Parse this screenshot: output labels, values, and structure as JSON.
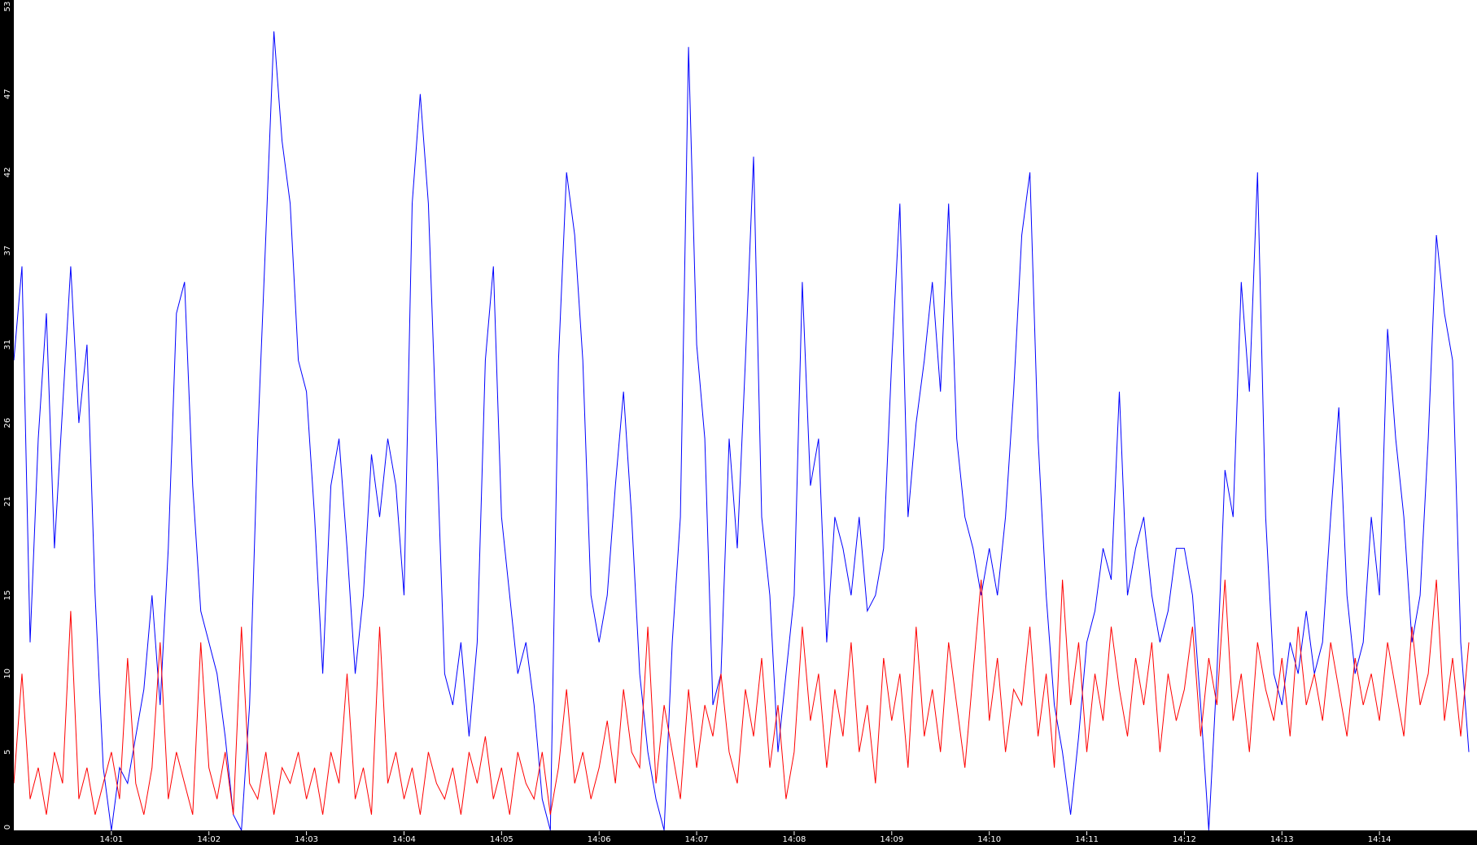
{
  "chart_data": {
    "type": "line",
    "title": "",
    "xlabel": "",
    "ylabel": "",
    "ylim": [
      0,
      53
    ],
    "xlim": [
      "14:00:00",
      "14:15:00"
    ],
    "sample_interval_seconds": 5,
    "grid": false,
    "legend": "none",
    "y_ticks": [
      "0",
      "5",
      "10",
      "15",
      "21",
      "26",
      "31",
      "37",
      "42",
      "47",
      "53"
    ],
    "x_ticks": [
      "14:01",
      "14:02",
      "14:03",
      "14:04",
      "14:05",
      "14:06",
      "14:07",
      "14:08",
      "14:09",
      "14:10",
      "14:11",
      "14:12",
      "14:13",
      "14:14"
    ],
    "series": [
      {
        "color": "#0000ff",
        "values": [
          30,
          36,
          12,
          25,
          33,
          18,
          27,
          36,
          26,
          31,
          15,
          4,
          0,
          4,
          3,
          6,
          9,
          15,
          8,
          18,
          33,
          35,
          22,
          14,
          12,
          10,
          6,
          1,
          0,
          8,
          25,
          38,
          51,
          44,
          40,
          30,
          28,
          20,
          10,
          22,
          25,
          18,
          10,
          15,
          24,
          20,
          25,
          22,
          15,
          40,
          47,
          40,
          25,
          10,
          8,
          12,
          6,
          12,
          30,
          36,
          20,
          15,
          10,
          12,
          8,
          2,
          0,
          30,
          42,
          38,
          30,
          15,
          12,
          15,
          22,
          28,
          20,
          10,
          5,
          2,
          0,
          12,
          20,
          50,
          31,
          25,
          8,
          10,
          25,
          18,
          30,
          43,
          20,
          15,
          5,
          10,
          15,
          35,
          22,
          25,
          12,
          20,
          18,
          15,
          20,
          14,
          15,
          18,
          30,
          40,
          20,
          26,
          30,
          35,
          28,
          40,
          25,
          20,
          18,
          15,
          18,
          15,
          20,
          28,
          38,
          42,
          25,
          15,
          8,
          5,
          1,
          6,
          12,
          14,
          18,
          16,
          28,
          15,
          18,
          20,
          15,
          12,
          14,
          18,
          18,
          15,
          8,
          0,
          10,
          23,
          20,
          35,
          28,
          42,
          20,
          10,
          8,
          12,
          10,
          14,
          10,
          12,
          20,
          27,
          15,
          10,
          12,
          20,
          15,
          32,
          25,
          20,
          12,
          15,
          25,
          38,
          33,
          30,
          12,
          5
        ]
      },
      {
        "color": "#ff0000",
        "values": [
          3,
          10,
          2,
          4,
          1,
          5,
          3,
          14,
          2,
          4,
          1,
          3,
          5,
          2,
          11,
          3,
          1,
          4,
          12,
          2,
          5,
          3,
          1,
          12,
          4,
          2,
          5,
          1,
          13,
          3,
          2,
          5,
          1,
          4,
          3,
          5,
          2,
          4,
          1,
          5,
          3,
          10,
          2,
          4,
          1,
          13,
          3,
          5,
          2,
          4,
          1,
          5,
          3,
          2,
          4,
          1,
          5,
          3,
          6,
          2,
          4,
          1,
          5,
          3,
          2,
          5,
          1,
          4,
          9,
          3,
          5,
          2,
          4,
          7,
          3,
          9,
          5,
          4,
          13,
          3,
          8,
          5,
          2,
          9,
          4,
          8,
          6,
          10,
          5,
          3,
          9,
          6,
          11,
          4,
          8,
          2,
          5,
          13,
          7,
          10,
          4,
          9,
          6,
          12,
          5,
          8,
          3,
          11,
          7,
          10,
          4,
          13,
          6,
          9,
          5,
          12,
          8,
          4,
          10,
          16,
          7,
          11,
          5,
          9,
          8,
          13,
          6,
          10,
          4,
          16,
          8,
          12,
          5,
          10,
          7,
          13,
          9,
          6,
          11,
          8,
          12,
          5,
          10,
          7,
          9,
          13,
          6,
          11,
          8,
          16,
          7,
          10,
          5,
          12,
          9,
          7,
          11,
          6,
          13,
          8,
          10,
          7,
          12,
          9,
          6,
          11,
          8,
          10,
          7,
          12,
          9,
          6,
          13,
          8,
          10,
          16,
          7,
          11,
          6,
          12
        ]
      }
    ]
  }
}
